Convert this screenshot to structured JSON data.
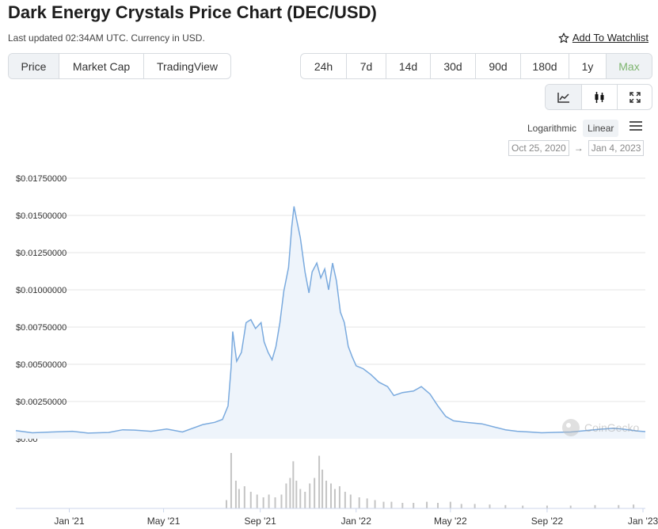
{
  "page": {
    "title": "Dark Energy Crystals Price Chart (DEC/USD)",
    "subtitle": "Last updated 02:34AM UTC. Currency in USD.",
    "watchlist_label": "Add To Watchlist"
  },
  "tabs": [
    {
      "label": "Price",
      "active": true
    },
    {
      "label": "Market Cap",
      "active": false
    },
    {
      "label": "TradingView",
      "active": false
    }
  ],
  "ranges": [
    {
      "label": "24h",
      "active": false
    },
    {
      "label": "7d",
      "active": false
    },
    {
      "label": "14d",
      "active": false
    },
    {
      "label": "30d",
      "active": false
    },
    {
      "label": "90d",
      "active": false
    },
    {
      "label": "180d",
      "active": false
    },
    {
      "label": "1y",
      "active": false
    },
    {
      "label": "Max",
      "active": true
    }
  ],
  "view_buttons": [
    {
      "icon": "line-chart-icon",
      "active": true
    },
    {
      "icon": "candlestick-icon",
      "active": false
    },
    {
      "icon": "expand-icon",
      "active": false
    }
  ],
  "scale": {
    "log_label": "Logarithmic",
    "linear_label": "Linear",
    "selected": "Linear"
  },
  "date_range": {
    "from": "Oct 25, 2020",
    "to": "Jan 4, 2023"
  },
  "colors": {
    "line": "#7aaade",
    "fill": "#eef4fb",
    "volume": "#c4c4c4",
    "accent": "#7eb56f"
  },
  "watermark": "CoinGecko",
  "chart_data": {
    "type": "area",
    "ylim": [
      0,
      0.0175
    ],
    "y_ticks": [
      "$0.00",
      "$0.00250000",
      "$0.00500000",
      "$0.00750000",
      "$0.01000000",
      "$0.01250000",
      "$0.01500000",
      "$0.01750000"
    ],
    "y_tick_values": [
      0,
      0.0025,
      0.005,
      0.0075,
      0.01,
      0.0125,
      0.015,
      0.0175
    ],
    "x_range": [
      "2020-10-25",
      "2023-01-04"
    ],
    "x_ticks": [
      {
        "label": "Jan '21",
        "date": "2021-01-01"
      },
      {
        "label": "May '21",
        "date": "2021-05-01"
      },
      {
        "label": "Sep '21",
        "date": "2021-09-01"
      },
      {
        "label": "Jan '22",
        "date": "2022-01-01"
      },
      {
        "label": "May '22",
        "date": "2022-05-01"
      },
      {
        "label": "Sep '22",
        "date": "2022-09-01"
      },
      {
        "label": "Jan '23",
        "date": "2023-01-01"
      }
    ],
    "series": [
      {
        "values": [
          [
            "2020-10-25",
            0.00055
          ],
          [
            "2020-11-15",
            0.0004
          ],
          [
            "2020-12-10",
            0.00045
          ],
          [
            "2021-01-05",
            0.0005
          ],
          [
            "2021-01-25",
            0.00038
          ],
          [
            "2021-02-20",
            0.00042
          ],
          [
            "2021-03-10",
            0.0006
          ],
          [
            "2021-03-25",
            0.00058
          ],
          [
            "2021-04-15",
            0.0005
          ],
          [
            "2021-05-05",
            0.00065
          ],
          [
            "2021-05-25",
            0.00045
          ],
          [
            "2021-06-20",
            0.00095
          ],
          [
            "2021-07-05",
            0.0011
          ],
          [
            "2021-07-15",
            0.0013
          ],
          [
            "2021-07-22",
            0.0022
          ],
          [
            "2021-07-26",
            0.0048
          ],
          [
            "2021-07-28",
            0.0072
          ],
          [
            "2021-08-02",
            0.0052
          ],
          [
            "2021-08-08",
            0.0058
          ],
          [
            "2021-08-14",
            0.0078
          ],
          [
            "2021-08-20",
            0.008
          ],
          [
            "2021-08-26",
            0.0074
          ],
          [
            "2021-09-02",
            0.0078
          ],
          [
            "2021-09-06",
            0.0065
          ],
          [
            "2021-09-11",
            0.0058
          ],
          [
            "2021-09-16",
            0.0053
          ],
          [
            "2021-09-21",
            0.0062
          ],
          [
            "2021-09-26",
            0.0078
          ],
          [
            "2021-10-01",
            0.0099
          ],
          [
            "2021-10-07",
            0.0115
          ],
          [
            "2021-10-11",
            0.0142
          ],
          [
            "2021-10-14",
            0.0156
          ],
          [
            "2021-10-17",
            0.0148
          ],
          [
            "2021-10-22",
            0.0135
          ],
          [
            "2021-10-28",
            0.0112
          ],
          [
            "2021-11-02",
            0.0098
          ],
          [
            "2021-11-06",
            0.0112
          ],
          [
            "2021-11-12",
            0.0118
          ],
          [
            "2021-11-17",
            0.0108
          ],
          [
            "2021-11-22",
            0.0114
          ],
          [
            "2021-11-27",
            0.01
          ],
          [
            "2021-12-02",
            0.0118
          ],
          [
            "2021-12-07",
            0.0106
          ],
          [
            "2021-12-12",
            0.0085
          ],
          [
            "2021-12-17",
            0.0078
          ],
          [
            "2021-12-22",
            0.0062
          ],
          [
            "2021-12-27",
            0.0055
          ],
          [
            "2022-01-01",
            0.0049
          ],
          [
            "2022-01-10",
            0.0047
          ],
          [
            "2022-01-20",
            0.0043
          ],
          [
            "2022-01-30",
            0.0038
          ],
          [
            "2022-02-10",
            0.0035
          ],
          [
            "2022-02-18",
            0.0029
          ],
          [
            "2022-03-01",
            0.0031
          ],
          [
            "2022-03-15",
            0.0032
          ],
          [
            "2022-03-25",
            0.0035
          ],
          [
            "2022-04-05",
            0.003
          ],
          [
            "2022-04-15",
            0.0022
          ],
          [
            "2022-04-25",
            0.0015
          ],
          [
            "2022-05-05",
            0.0012
          ],
          [
            "2022-05-20",
            0.0011
          ],
          [
            "2022-06-10",
            0.001
          ],
          [
            "2022-06-25",
            0.0008
          ],
          [
            "2022-07-10",
            0.0006
          ],
          [
            "2022-07-25",
            0.0005
          ],
          [
            "2022-08-10",
            0.00045
          ],
          [
            "2022-08-25",
            0.0004
          ],
          [
            "2022-09-15",
            0.00043
          ],
          [
            "2022-10-01",
            0.00045
          ],
          [
            "2022-10-20",
            0.00055
          ],
          [
            "2022-11-10",
            0.00065
          ],
          [
            "2022-11-25",
            0.0007
          ],
          [
            "2022-12-10",
            0.00062
          ],
          [
            "2022-12-25",
            0.00052
          ],
          [
            "2023-01-04",
            0.00048
          ]
        ]
      }
    ],
    "volume": [
      [
        "2021-07-20",
        0.15
      ],
      [
        "2021-07-26",
        1.0
      ],
      [
        "2021-08-01",
        0.5
      ],
      [
        "2021-08-05",
        0.35
      ],
      [
        "2021-08-12",
        0.4
      ],
      [
        "2021-08-20",
        0.3
      ],
      [
        "2021-08-28",
        0.25
      ],
      [
        "2021-09-05",
        0.2
      ],
      [
        "2021-09-12",
        0.25
      ],
      [
        "2021-09-20",
        0.2
      ],
      [
        "2021-09-28",
        0.25
      ],
      [
        "2021-10-04",
        0.45
      ],
      [
        "2021-10-09",
        0.55
      ],
      [
        "2021-10-13",
        0.85
      ],
      [
        "2021-10-17",
        0.5
      ],
      [
        "2021-10-22",
        0.35
      ],
      [
        "2021-10-28",
        0.3
      ],
      [
        "2021-11-03",
        0.45
      ],
      [
        "2021-11-09",
        0.55
      ],
      [
        "2021-11-15",
        0.95
      ],
      [
        "2021-11-19",
        0.7
      ],
      [
        "2021-11-24",
        0.5
      ],
      [
        "2021-11-30",
        0.45
      ],
      [
        "2021-12-05",
        0.35
      ],
      [
        "2021-12-11",
        0.4
      ],
      [
        "2021-12-18",
        0.3
      ],
      [
        "2021-12-25",
        0.25
      ],
      [
        "2022-01-05",
        0.2
      ],
      [
        "2022-01-15",
        0.18
      ],
      [
        "2022-01-25",
        0.15
      ],
      [
        "2022-02-05",
        0.12
      ],
      [
        "2022-02-15",
        0.12
      ],
      [
        "2022-03-01",
        0.1
      ],
      [
        "2022-03-15",
        0.1
      ],
      [
        "2022-04-01",
        0.12
      ],
      [
        "2022-04-15",
        0.1
      ],
      [
        "2022-05-01",
        0.12
      ],
      [
        "2022-05-15",
        0.08
      ],
      [
        "2022-06-01",
        0.08
      ],
      [
        "2022-06-20",
        0.07
      ],
      [
        "2022-07-10",
        0.06
      ],
      [
        "2022-08-01",
        0.05
      ],
      [
        "2022-09-01",
        0.05
      ],
      [
        "2022-10-01",
        0.05
      ],
      [
        "2022-11-01",
        0.06
      ],
      [
        "2022-12-01",
        0.06
      ],
      [
        "2022-12-20",
        0.07
      ]
    ]
  }
}
